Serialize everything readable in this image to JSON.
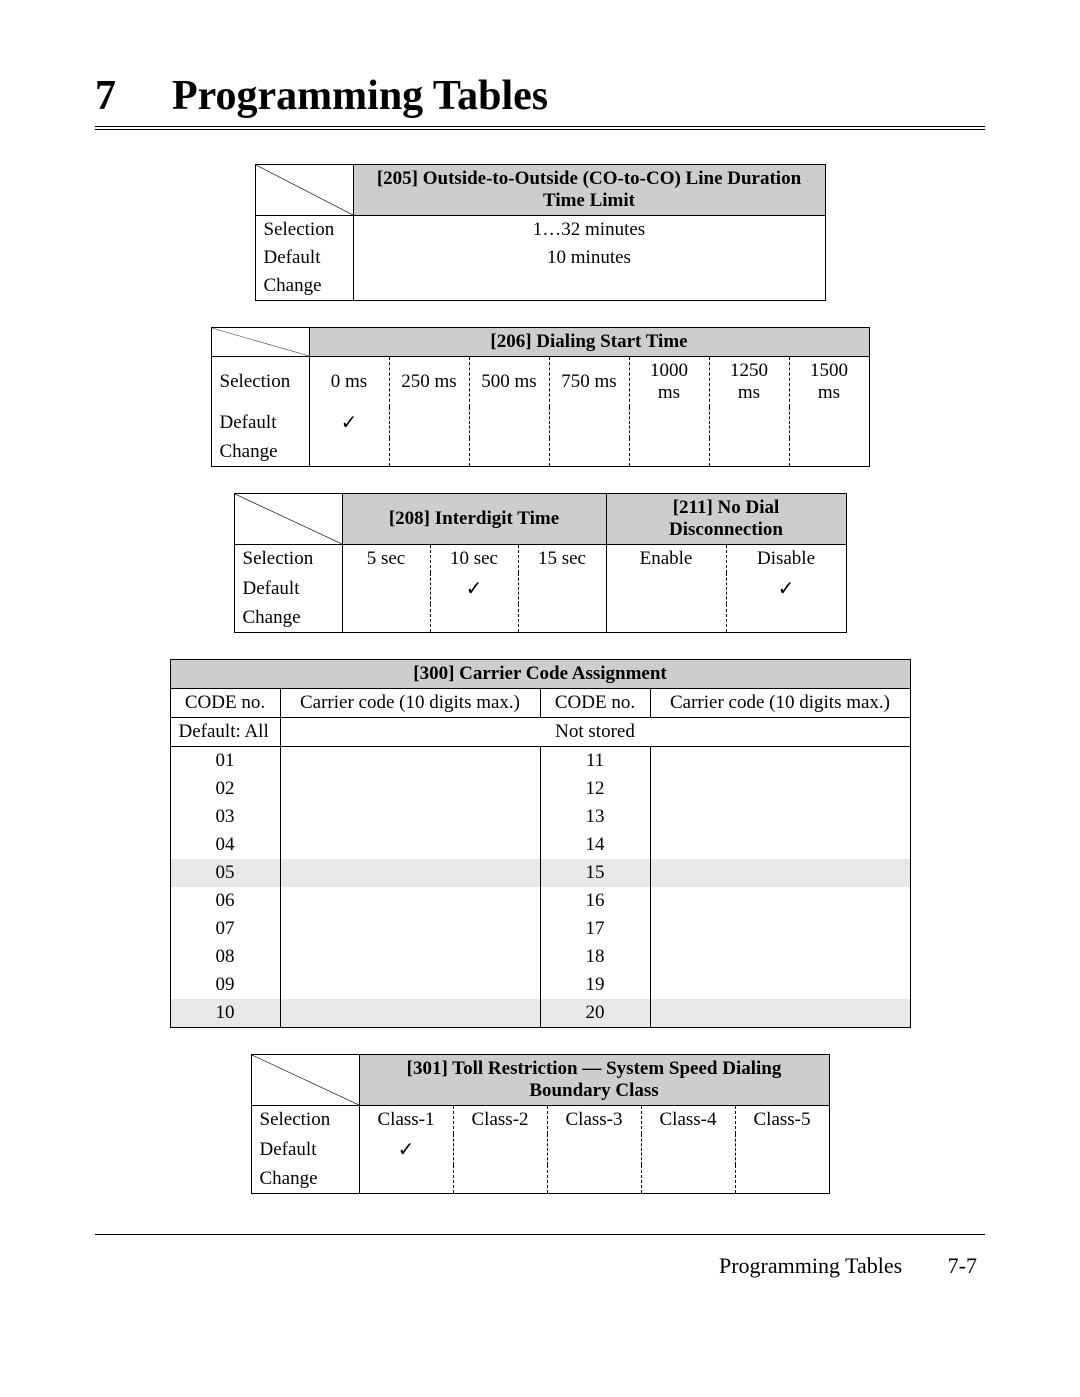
{
  "chapter": {
    "number": "7",
    "title": "Programming Tables"
  },
  "table205": {
    "header": "[205] Outside-to-Outside (CO-to-CO) Line Duration Time Limit",
    "rows": {
      "selection_label": "Selection",
      "selection_value": "1…32 minutes",
      "default_label": "Default",
      "default_value": "10 minutes",
      "change_label": "Change",
      "change_value": ""
    },
    "col_label_w": 98,
    "col_val_w": 472
  },
  "table206": {
    "header": "[206] Dialing Start Time",
    "row_labels": {
      "selection": "Selection",
      "default": "Default",
      "change": "Change"
    },
    "options": [
      "0 ms",
      "250 ms",
      "500 ms",
      "750 ms",
      "1000 ms",
      "1250 ms",
      "1500 ms"
    ],
    "default_index": 0,
    "col_label_w": 98,
    "col_opt_w": 80
  },
  "table208_211": {
    "header_208": "[208] Interdigit Time",
    "header_211": "[211] No Dial Disconnection",
    "row_labels": {
      "selection": "Selection",
      "default": "Default",
      "change": "Change"
    },
    "opts_208": [
      "5 sec",
      "10 sec",
      "15 sec"
    ],
    "default_208_index": 1,
    "opts_211": [
      "Enable",
      "Disable"
    ],
    "default_211_index": 1,
    "col_label_w": 108,
    "col_208_w": 88,
    "col_211_w": 120
  },
  "table300": {
    "header": "[300] Carrier Code Assignment",
    "sub": {
      "code_no": "CODE no.",
      "carrier_code": "Carrier code (10 digits max.)",
      "default_all": "Default: All",
      "not_stored": "Not stored"
    },
    "left_codes": [
      "01",
      "02",
      "03",
      "04",
      "05",
      "06",
      "07",
      "08",
      "09",
      "10"
    ],
    "right_codes": [
      "11",
      "12",
      "13",
      "14",
      "15",
      "16",
      "17",
      "18",
      "19",
      "20"
    ],
    "shaded_rows": [
      4,
      9
    ],
    "col_code_w": 110,
    "col_cc_w": 260
  },
  "table301": {
    "header": "[301] Toll Restriction — System Speed Dialing Boundary Class",
    "row_labels": {
      "selection": "Selection",
      "default": "Default",
      "change": "Change"
    },
    "options": [
      "Class-1",
      "Class-2",
      "Class-3",
      "Class-4",
      "Class-5"
    ],
    "default_index": 0,
    "col_label_w": 108,
    "col_opt_w": 94
  },
  "footer": {
    "title": "Programming Tables",
    "page": "7-7"
  },
  "check_glyph": "✓",
  "colors": {
    "header_bg": "#cdcdcd",
    "shade_bg": "#e8e8e8"
  }
}
